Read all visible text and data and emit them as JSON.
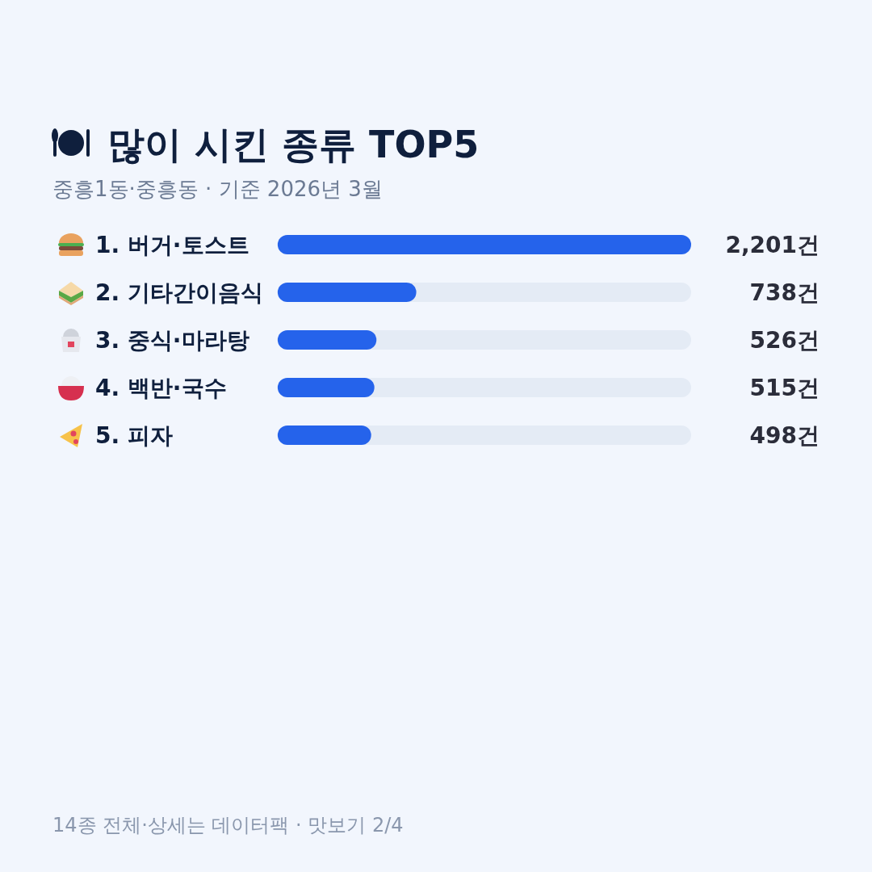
{
  "chart_data": {
    "type": "bar",
    "orientation": "horizontal",
    "title": "많이 시킨 종류 TOP5",
    "subtitle": "중흥1동·중흥동 · 기준 2026년 3월",
    "categories": [
      "1. 버거·토스트",
      "2. 기타간이음식",
      "3. 중식·마라탕",
      "4. 백반·국수",
      "5. 피자"
    ],
    "values": [
      2201,
      738,
      526,
      515,
      498
    ],
    "value_labels": [
      "2,201건",
      "738건",
      "526건",
      "515건",
      "498건"
    ],
    "color": "#2563eb",
    "annotations": [
      "14종 전체·상세는 데이터팩 · 맛보기 2/4"
    ]
  }
}
